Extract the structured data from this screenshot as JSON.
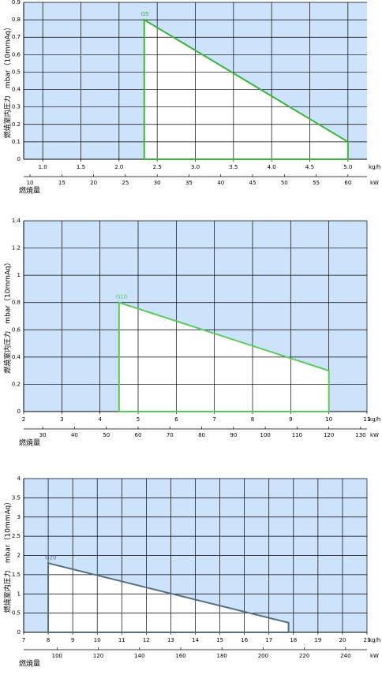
{
  "chart_data": [
    {
      "type": "area",
      "ylabel": "燃焼室内圧力　mbar（10mmAq）",
      "xlabel": "kg/h",
      "x2label": "kW",
      "axis_title": "燃焼量",
      "xlim": [
        0.75,
        5.25
      ],
      "xticks": [
        {
          "value": 1,
          "label": "1.0"
        },
        1.5,
        {
          "value": 2,
          "label": "2.0"
        },
        2.5,
        {
          "value": 3,
          "label": "3.0"
        },
        3.5,
        {
          "value": 4,
          "label": "4.0"
        },
        4.5,
        {
          "value": 5,
          "label": "5.0"
        }
      ],
      "x2lim": [
        9,
        63
      ],
      "x2ticks": [
        10,
        15,
        20,
        25,
        30,
        35,
        40,
        45,
        50,
        55,
        60
      ],
      "ylim": [
        0,
        0.9
      ],
      "yticks": [
        0,
        0.1,
        0.2,
        0.3,
        0.4,
        0.5,
        0.6,
        0.7,
        0.8,
        0.9
      ],
      "grid": true,
      "series": [
        {
          "name": "G5",
          "color": "#3cb43c",
          "x": [
            2.33,
            2.33,
            5,
            5
          ],
          "values": [
            0,
            0.8,
            0.1,
            0
          ]
        }
      ]
    },
    {
      "type": "area",
      "ylabel": "燃焼室内圧力　mbar（10mmAq）",
      "xlabel": "kg/h",
      "x2label": "kW",
      "axis_title": "燃焼量",
      "xlim": [
        2,
        11
      ],
      "xticks": [
        2,
        3,
        4,
        5,
        6,
        7,
        8,
        9,
        10,
        11
      ],
      "x2lim": [
        24,
        132
      ],
      "x2ticks": [
        30,
        40,
        50,
        60,
        70,
        80,
        90,
        100,
        110,
        120,
        130
      ],
      "ylim": [
        0,
        1.4
      ],
      "yticks": [
        0,
        0.2,
        0.4,
        0.6,
        0.8,
        1,
        1.2,
        1.4
      ],
      "grid": true,
      "series": [
        {
          "name": "G10",
          "color": "#5cc85c",
          "x": [
            4.5,
            4.5,
            10,
            10
          ],
          "values": [
            0,
            0.8,
            0.3,
            0
          ]
        }
      ]
    },
    {
      "type": "area",
      "ylabel": "燃焼室内圧力　mbar（10mmAq）",
      "xlabel": "kg/h",
      "x2label": "kW",
      "axis_title": "燃焼量",
      "xlim": [
        7,
        21
      ],
      "xticks": [
        7,
        8,
        9,
        10,
        11,
        12,
        13,
        14,
        15,
        16,
        17,
        18,
        19,
        20,
        21
      ],
      "x2lim": [
        83.8,
        250.4
      ],
      "x2ticks": [
        100,
        120,
        140,
        160,
        180,
        200,
        220,
        240
      ],
      "ylim": [
        0,
        4
      ],
      "yticks": [
        0,
        0.5,
        1,
        1.5,
        2,
        2.5,
        3,
        3.5,
        4
      ],
      "grid": true,
      "series": [
        {
          "name": "G20",
          "color": "#557080",
          "x": [
            8,
            8,
            17.8,
            17.8
          ],
          "values": [
            0,
            1.8,
            0.25,
            0
          ]
        }
      ]
    }
  ]
}
